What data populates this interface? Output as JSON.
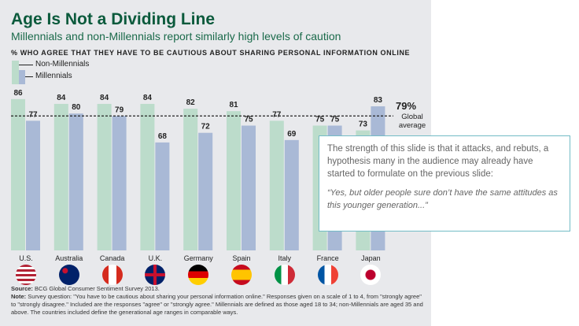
{
  "header": {
    "title": "Age Is Not a Dividing Line",
    "subtitle": "Millennials and non-Millennials report similarly high levels of caution"
  },
  "chart_data": {
    "type": "bar",
    "title": "% WHO AGREE THAT THEY HAVE TO BE CAUTIOUS ABOUT SHARING PERSONAL INFORMATION ONLINE",
    "categories": [
      "U.S.",
      "Australia",
      "Canada",
      "U.K.",
      "Germany",
      "Spain",
      "Italy",
      "France",
      "Japan"
    ],
    "series": [
      {
        "name": "Non-Millennials",
        "color": "#bcdccb",
        "values": [
          86,
          84,
          84,
          84,
          82,
          81,
          77,
          75,
          73
        ]
      },
      {
        "name": "Millennials",
        "color": "#a9b9d6",
        "values": [
          77,
          80,
          79,
          68,
          72,
          75,
          69,
          75,
          83
        ]
      }
    ],
    "reference_line": {
      "value": 79,
      "label": "79%",
      "sublabel": "Global average"
    },
    "legend": "top-left",
    "grid": false
  },
  "footer": {
    "source_label": "Source:",
    "source": "BCG Global Consumer Sentiment Survey 2013.",
    "note_label": "Note:",
    "note": "Survey question: \"You have to be cautious about sharing your personal information online.\" Responses given on a scale of 1 to 4, from \"strongly agree\" to \"strongly disagree.\" Included are the responses \"agree\" or \"strongly agree.\" Millennials are defined as those aged 18 to 34; non-Millennials are aged 35 and above. The countries included define the generational age ranges in comparable ways."
  },
  "callout": {
    "text": "The strength of this slide is that it attacks, and rebuts, a hypothesis many in the audience may already have started to formulate on the previous slide:",
    "quote": "“Yes, but older people sure don’t have the same attitudes as this younger generation...”"
  }
}
